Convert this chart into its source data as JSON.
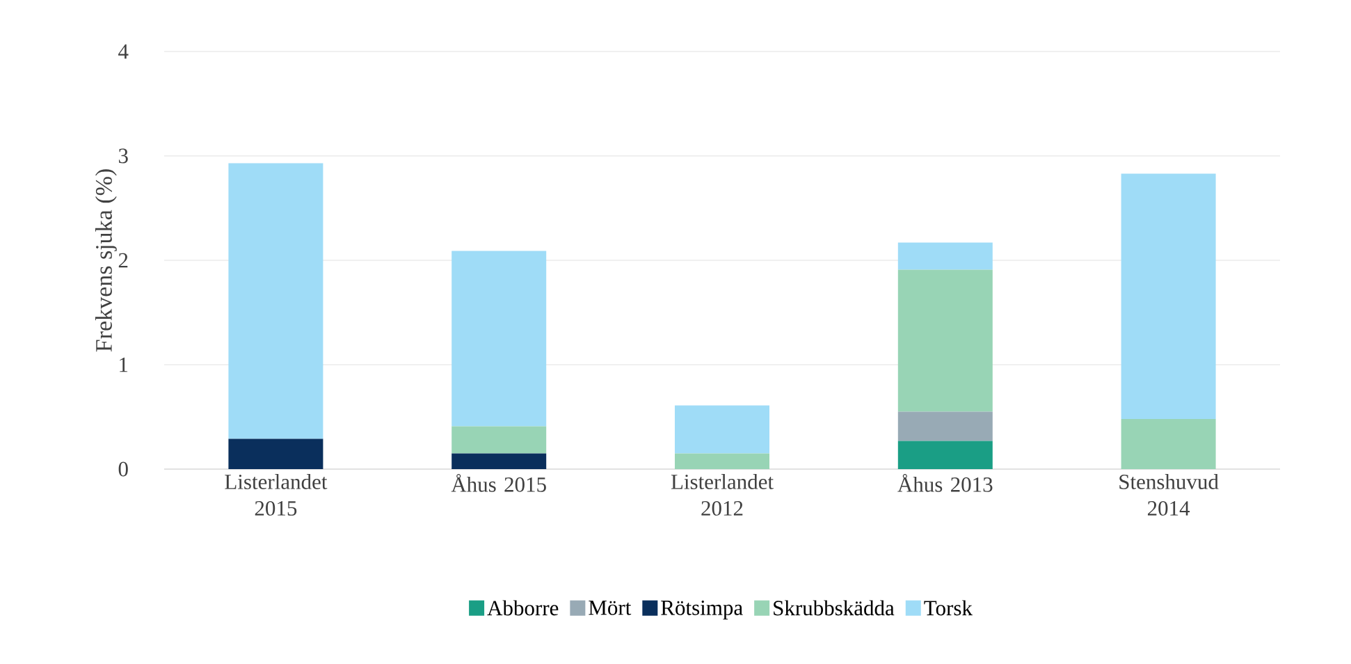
{
  "chart_data": {
    "type": "bar",
    "stacked": true,
    "ylabel": "Frekvens sjuka (%)",
    "categories": [
      "Listerlandet 2015",
      "Åhus 2015",
      "Listerlandet 2012",
      "Åhus 2013",
      "Stenshuvud 2014"
    ],
    "series": [
      {
        "name": "Abborre",
        "color": "#1a9e85",
        "values": [
          0,
          0,
          0,
          0.27,
          0
        ]
      },
      {
        "name": "Mört",
        "color": "#98aab5",
        "values": [
          0,
          0,
          0,
          0.28,
          0
        ]
      },
      {
        "name": "Rötsimpa",
        "color": "#0a2f5c",
        "values": [
          0.29,
          0.15,
          0,
          0,
          0
        ]
      },
      {
        "name": "Skrubbskädda",
        "color": "#98d4b5",
        "values": [
          0,
          0.26,
          0.15,
          1.36,
          0.48
        ]
      },
      {
        "name": "Torsk",
        "color": "#9fdcf7",
        "values": [
          2.64,
          1.68,
          0.46,
          0.26,
          2.35
        ]
      }
    ],
    "ylim": [
      0,
      4
    ],
    "yticks": [
      0,
      1,
      2,
      3,
      4
    ],
    "grid": "y",
    "legend": "bottom"
  }
}
